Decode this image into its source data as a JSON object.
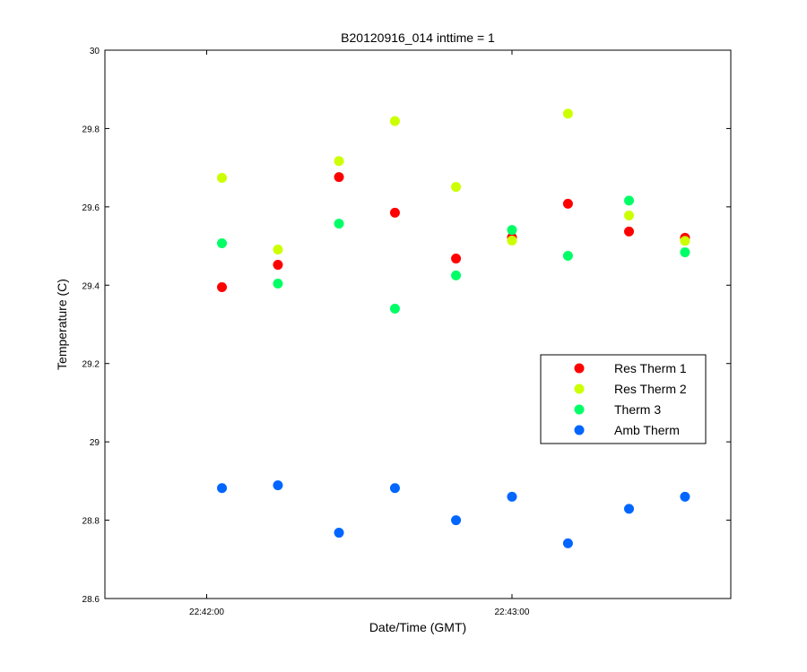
{
  "chart_data": {
    "type": "scatter",
    "title": "B20120916_014 inttime = 1",
    "xlabel": "Date/Time (GMT)",
    "ylabel": "Temperature (C)",
    "xlim": [
      "22:41:40",
      "22:43:43"
    ],
    "ylim": [
      28.6,
      30
    ],
    "x_ticks": [
      "22:42:00",
      "22:43:00"
    ],
    "y_ticks": [
      "28.6",
      "28.8",
      "29",
      "29.2",
      "29.4",
      "29.6",
      "29.8",
      "30"
    ],
    "grid": false,
    "legend_position": "right-center",
    "x": [
      "22:42:03",
      "22:42:14",
      "22:42:26",
      "22:42:37",
      "22:42:49",
      "22:43:00",
      "22:43:11",
      "22:43:23",
      "22:43:34"
    ],
    "series": [
      {
        "name": "Res Therm 1",
        "color": "#ff0000",
        "values": [
          29.395,
          29.452,
          29.676,
          29.585,
          29.468,
          29.522,
          29.608,
          29.537,
          29.521
        ]
      },
      {
        "name": "Res Therm 2",
        "color": "#ccff00",
        "values": [
          29.674,
          29.491,
          29.717,
          29.819,
          29.651,
          29.514,
          29.838,
          29.578,
          29.513
        ]
      },
      {
        "name": "Therm 3",
        "color": "#00ff66",
        "values": [
          29.507,
          29.404,
          29.557,
          29.34,
          29.425,
          29.541,
          29.475,
          29.616,
          29.484
        ]
      },
      {
        "name": "Amb Therm",
        "color": "#0066ff",
        "values": [
          28.882,
          28.889,
          28.768,
          28.882,
          28.8,
          28.86,
          28.741,
          28.829,
          28.86
        ]
      }
    ]
  }
}
